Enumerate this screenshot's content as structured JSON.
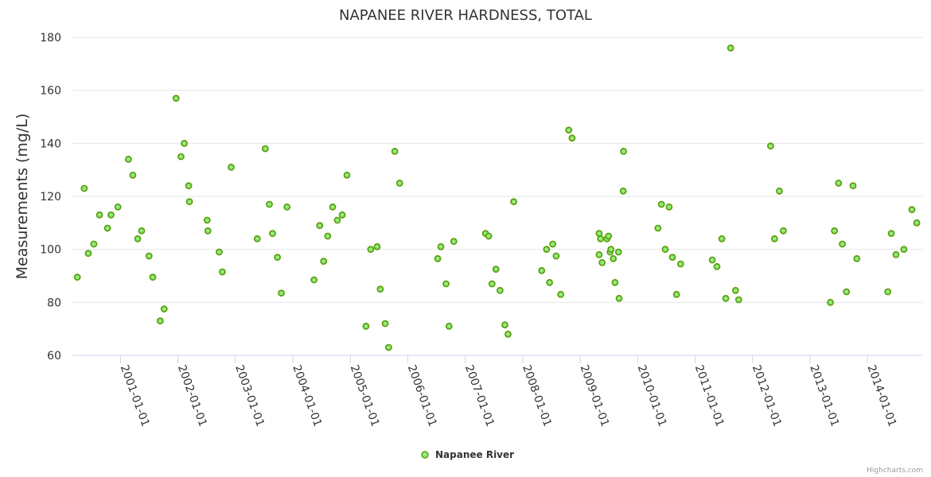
{
  "chart_data": {
    "type": "scatter",
    "title": "NAPANEE RIVER HARDNESS, TOTAL",
    "ylabel": "Measurements (mg/L)",
    "ylim": [
      60,
      180
    ],
    "yticks": [
      60,
      80,
      100,
      120,
      140,
      160,
      180
    ],
    "xlim": [
      "2000-03-01",
      "2014-12-20"
    ],
    "xticks": [
      "2001-01-01",
      "2002-01-01",
      "2003-01-01",
      "2004-01-01",
      "2005-01-01",
      "2006-01-01",
      "2007-01-01",
      "2008-01-01",
      "2009-01-01",
      "2010-01-01",
      "2011-01-01",
      "2012-01-01",
      "2013-01-01",
      "2014-01-01"
    ],
    "grid": true,
    "legend": "bottom-center",
    "series": [
      {
        "name": "Napanee River",
        "color": "#90ed7d",
        "points": [
          [
            "2000-04-01",
            89.5
          ],
          [
            "2000-05-15",
            123
          ],
          [
            "2000-06-10",
            98.5
          ],
          [
            "2000-07-15",
            102
          ],
          [
            "2000-08-20",
            113
          ],
          [
            "2000-10-10",
            108
          ],
          [
            "2000-11-01",
            113
          ],
          [
            "2000-12-15",
            116
          ],
          [
            "2001-02-20",
            134
          ],
          [
            "2001-03-20",
            128
          ],
          [
            "2001-04-20",
            104
          ],
          [
            "2001-05-15",
            107
          ],
          [
            "2001-07-01",
            97.5
          ],
          [
            "2001-07-25",
            89.5
          ],
          [
            "2001-09-10",
            73
          ],
          [
            "2001-10-05",
            77.5
          ],
          [
            "2001-12-20",
            157
          ],
          [
            "2002-01-20",
            135
          ],
          [
            "2002-02-10",
            140
          ],
          [
            "2002-03-10",
            124
          ],
          [
            "2002-03-15",
            118
          ],
          [
            "2002-07-05",
            111
          ],
          [
            "2002-07-10",
            107
          ],
          [
            "2002-09-20",
            99
          ],
          [
            "2002-10-10",
            91.5
          ],
          [
            "2002-12-05",
            131
          ],
          [
            "2003-05-20",
            104
          ],
          [
            "2003-07-10",
            138
          ],
          [
            "2003-08-05",
            117
          ],
          [
            "2003-08-25",
            106
          ],
          [
            "2003-09-25",
            97
          ],
          [
            "2003-10-20",
            83.5
          ],
          [
            "2003-11-25",
            116
          ],
          [
            "2004-05-15",
            88.5
          ],
          [
            "2004-06-20",
            109
          ],
          [
            "2004-07-15",
            95.5
          ],
          [
            "2004-08-10",
            105
          ],
          [
            "2004-09-10",
            116
          ],
          [
            "2004-10-10",
            111
          ],
          [
            "2004-11-10",
            113
          ],
          [
            "2004-12-10",
            128
          ],
          [
            "2005-04-10",
            71
          ],
          [
            "2005-05-10",
            100
          ],
          [
            "2005-06-20",
            101
          ],
          [
            "2005-07-10",
            85
          ],
          [
            "2005-08-10",
            72
          ],
          [
            "2005-09-01",
            63
          ],
          [
            "2005-10-10",
            137
          ],
          [
            "2005-11-10",
            125
          ],
          [
            "2006-07-10",
            96.5
          ],
          [
            "2006-07-30",
            101
          ],
          [
            "2006-09-01",
            87
          ],
          [
            "2006-09-20",
            71
          ],
          [
            "2006-10-20",
            103
          ],
          [
            "2007-05-10",
            106
          ],
          [
            "2007-05-30",
            105
          ],
          [
            "2007-06-20",
            87
          ],
          [
            "2007-07-15",
            92.5
          ],
          [
            "2007-08-10",
            84.5
          ],
          [
            "2007-09-10",
            71.5
          ],
          [
            "2007-09-30",
            68
          ],
          [
            "2007-11-05",
            118
          ],
          [
            "2008-05-01",
            92
          ],
          [
            "2008-06-01",
            100
          ],
          [
            "2008-06-20",
            87.5
          ],
          [
            "2008-07-10",
            102
          ],
          [
            "2008-08-01",
            97.5
          ],
          [
            "2008-08-30",
            83
          ],
          [
            "2008-10-20",
            145
          ],
          [
            "2008-11-10",
            142
          ],
          [
            "2009-05-01",
            98
          ],
          [
            "2009-05-01",
            106
          ],
          [
            "2009-05-10",
            104
          ],
          [
            "2009-05-20",
            95
          ],
          [
            "2009-06-20",
            104
          ],
          [
            "2009-06-30",
            105
          ],
          [
            "2009-07-10",
            99
          ],
          [
            "2009-07-15",
            100
          ],
          [
            "2009-07-30",
            96.5
          ],
          [
            "2009-08-10",
            87.5
          ],
          [
            "2009-09-01",
            99
          ],
          [
            "2009-09-05",
            81.5
          ],
          [
            "2009-10-01",
            122
          ],
          [
            "2009-10-03",
            137
          ],
          [
            "2010-05-10",
            108
          ],
          [
            "2010-06-01",
            117
          ],
          [
            "2010-06-25",
            100
          ],
          [
            "2010-07-20",
            116
          ],
          [
            "2010-08-10",
            97
          ],
          [
            "2010-09-05",
            83
          ],
          [
            "2010-10-01",
            94.5
          ],
          [
            "2011-04-20",
            96
          ],
          [
            "2011-05-20",
            93.5
          ],
          [
            "2011-06-20",
            104
          ],
          [
            "2011-07-15",
            81.5
          ],
          [
            "2011-08-15",
            176
          ],
          [
            "2011-09-15",
            84.5
          ],
          [
            "2011-10-05",
            81
          ],
          [
            "2012-04-25",
            139
          ],
          [
            "2012-05-20",
            104
          ],
          [
            "2012-06-20",
            122
          ],
          [
            "2012-07-15",
            107
          ],
          [
            "2013-05-10",
            80
          ],
          [
            "2013-06-05",
            107
          ],
          [
            "2013-07-01",
            125
          ],
          [
            "2013-07-25",
            102
          ],
          [
            "2013-08-20",
            84
          ],
          [
            "2013-10-01",
            124
          ],
          [
            "2013-10-25",
            96.5
          ],
          [
            "2014-05-10",
            84
          ],
          [
            "2014-06-01",
            106
          ],
          [
            "2014-07-01",
            98
          ],
          [
            "2014-08-20",
            100
          ],
          [
            "2014-10-10",
            115
          ],
          [
            "2014-11-10",
            110
          ]
        ]
      }
    ]
  },
  "credits": "Highcharts.com"
}
